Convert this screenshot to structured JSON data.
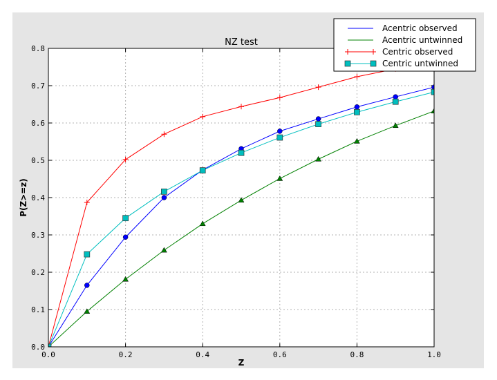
{
  "chart_data": {
    "type": "line",
    "title": "NZ test",
    "xlabel": "Z",
    "ylabel": "P(Z>=z)",
    "xlim": [
      0.0,
      1.0
    ],
    "ylim": [
      0.0,
      0.8
    ],
    "xticks": [
      "0.0",
      "0.2",
      "0.4",
      "0.6",
      "0.8",
      "1.0"
    ],
    "yticks": [
      "0.0",
      "0.1",
      "0.2",
      "0.3",
      "0.4",
      "0.5",
      "0.6",
      "0.7",
      "0.8"
    ],
    "grid": true,
    "legend_position": "top-right",
    "x": [
      0.0,
      0.1,
      0.2,
      0.3,
      0.4,
      0.5,
      0.6,
      0.7,
      0.8,
      0.9,
      1.0
    ],
    "series": [
      {
        "name": "Acentric observed",
        "color": "#0000ff",
        "marker": "circle",
        "values": [
          0.0,
          0.165,
          0.294,
          0.4,
          0.474,
          0.531,
          0.578,
          0.611,
          0.643,
          0.67,
          0.696
        ]
      },
      {
        "name": "Acentric untwinned",
        "color": "#008000",
        "marker": "triangle",
        "values": [
          0.0,
          0.095,
          0.181,
          0.259,
          0.33,
          0.393,
          0.451,
          0.503,
          0.551,
          0.593,
          0.632
        ]
      },
      {
        "name": "Centric observed",
        "color": "#ff0000",
        "marker": "plus",
        "values": [
          0.0,
          0.387,
          0.502,
          0.57,
          0.617,
          0.644,
          0.668,
          0.696,
          0.724,
          0.745,
          0.766
        ]
      },
      {
        "name": "Centric untwinned",
        "color": "#00bfbf",
        "marker": "square",
        "values": [
          0.0,
          0.248,
          0.345,
          0.416,
          0.473,
          0.52,
          0.561,
          0.597,
          0.629,
          0.657,
          0.683
        ]
      }
    ]
  }
}
